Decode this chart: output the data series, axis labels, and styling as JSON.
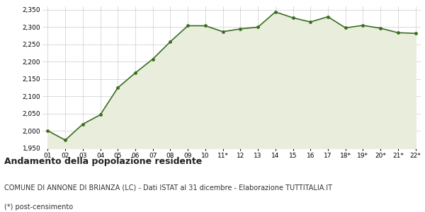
{
  "x_labels": [
    "01",
    "02",
    "03",
    "04",
    "05",
    "06",
    "07",
    "08",
    "09",
    "10",
    "11*",
    "12",
    "13",
    "14",
    "15",
    "16",
    "17",
    "18*",
    "19*",
    "20*",
    "21*",
    "22*"
  ],
  "y_values": [
    2001,
    1974,
    2020,
    2047,
    2125,
    2168,
    2208,
    2258,
    2304,
    2304,
    2287,
    2295,
    2300,
    2344,
    2327,
    2315,
    2330,
    2298,
    2305,
    2297,
    2284,
    2282
  ],
  "line_color": "#3a6e1f",
  "fill_color": "#e8eddc",
  "marker_color": "#3a6e1f",
  "bg_color": "#ffffff",
  "plot_bg_color": "#ffffff",
  "grid_color": "#cccccc",
  "ylim": [
    1950,
    2360
  ],
  "yticks": [
    1950,
    2000,
    2050,
    2100,
    2150,
    2200,
    2250,
    2300,
    2350
  ],
  "title1": "Andamento della popolazione residente",
  "title2": "COMUNE DI ANNONE DI BRIANZA (LC) - Dati ISTAT al 31 dicembre - Elaborazione TUTTITALIA.IT",
  "title3": "(*) post-censimento",
  "title1_fontsize": 9,
  "title2_fontsize": 7,
  "title3_fontsize": 7
}
